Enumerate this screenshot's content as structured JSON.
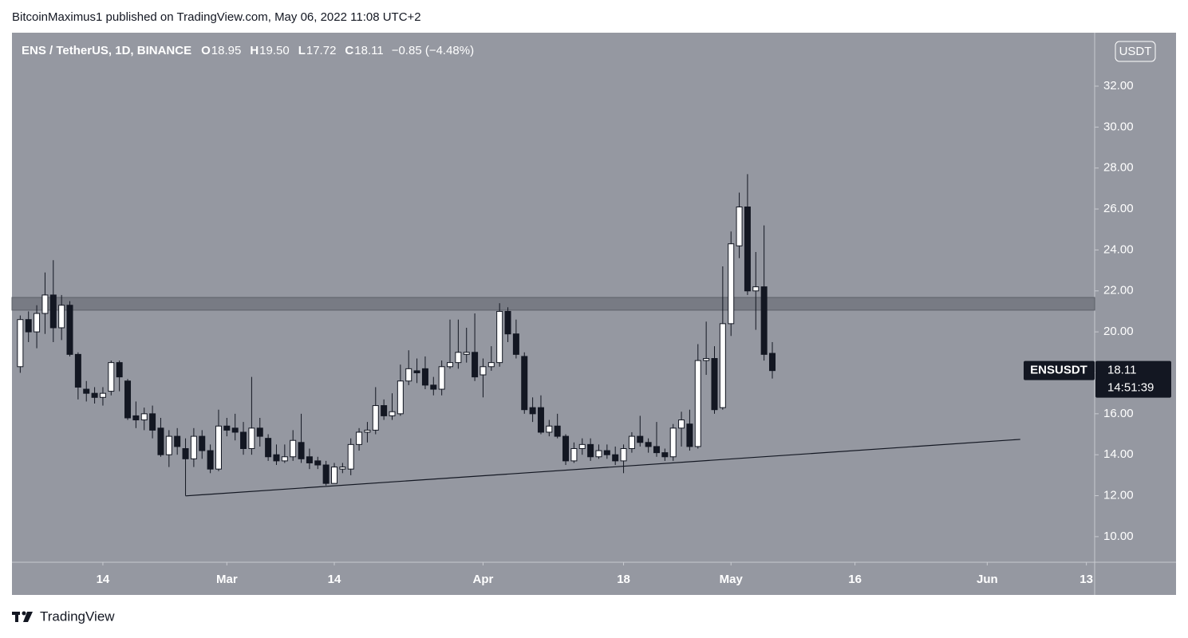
{
  "header": "BitcoinMaximus1 published on TradingView.com, May 06, 2022 11:08 UTC+2",
  "footer": {
    "brand": "TradingView"
  },
  "chart_data": {
    "type": "candlestick",
    "title": "ENS / TetherUS, 1D, BINANCE",
    "legend": [
      {
        "label": "O",
        "value": "18.95"
      },
      {
        "label": "H",
        "value": "19.50"
      },
      {
        "label": "L",
        "value": "17.72"
      },
      {
        "label": "C",
        "value": "18.11"
      }
    ],
    "change": "−0.85 (−4.48%)",
    "currency": "USDT",
    "last_tag": {
      "symbol": "ENSUSDT",
      "price": "18.11",
      "countdown": "14:51:39"
    },
    "up_color": "#ffffff",
    "down_color": "#131722",
    "x": [
      "Feb 04",
      "Feb 05",
      "Feb 06",
      "Feb 07",
      "Feb 08",
      "Feb 09",
      "Feb 10",
      "Feb 11",
      "Feb 12",
      "Feb 13",
      "Feb 14",
      "Feb 15",
      "Feb 16",
      "Feb 17",
      "Feb 18",
      "Feb 19",
      "Feb 20",
      "Feb 21",
      "Feb 22",
      "Feb 23",
      "Feb 24",
      "Feb 25",
      "Feb 26",
      "Feb 27",
      "Feb 28",
      "Mar 01",
      "Mar 02",
      "Mar 03",
      "Mar 04",
      "Mar 05",
      "Mar 06",
      "Mar 07",
      "Mar 08",
      "Mar 09",
      "Mar 10",
      "Mar 11",
      "Mar 12",
      "Mar 13",
      "Mar 14",
      "Mar 15",
      "Mar 16",
      "Mar 17",
      "Mar 18",
      "Mar 19",
      "Mar 20",
      "Mar 21",
      "Mar 22",
      "Mar 23",
      "Mar 24",
      "Mar 25",
      "Mar 26",
      "Mar 27",
      "Mar 28",
      "Mar 29",
      "Mar 30",
      "Mar 31",
      "Apr 01",
      "Apr 02",
      "Apr 03",
      "Apr 04",
      "Apr 05",
      "Apr 06",
      "Apr 07",
      "Apr 08",
      "Apr 09",
      "Apr 10",
      "Apr 11",
      "Apr 12",
      "Apr 13",
      "Apr 14",
      "Apr 15",
      "Apr 16",
      "Apr 17",
      "Apr 18",
      "Apr 19",
      "Apr 20",
      "Apr 21",
      "Apr 22",
      "Apr 23",
      "Apr 24",
      "Apr 25",
      "Apr 26",
      "Apr 27",
      "Apr 28",
      "Apr 29",
      "Apr 30",
      "May 01",
      "May 02",
      "May 03",
      "May 04",
      "May 05",
      "May 06"
    ],
    "open": [
      18.3,
      20.6,
      20.0,
      20.9,
      21.8,
      20.2,
      21.3,
      18.9,
      17.2,
      17.0,
      16.8,
      17.1,
      18.5,
      17.6,
      15.9,
      15.7,
      16.0,
      15.3,
      14.0,
      14.9,
      14.3,
      13.8,
      14.9,
      14.2,
      13.3,
      15.4,
      15.3,
      15.1,
      14.3,
      15.3,
      14.8,
      14.0,
      13.7,
      13.9,
      14.6,
      13.9,
      13.7,
      13.5,
      12.6,
      13.3,
      13.3,
      14.5,
      15.1,
      15.2,
      16.4,
      15.9,
      16.0,
      17.6,
      18.1,
      18.2,
      17.4,
      17.2,
      18.3,
      18.5,
      18.9,
      19.0,
      17.9,
      18.3,
      18.5,
      21.0,
      19.9,
      18.8,
      16.3,
      16.3,
      15.1,
      15.4,
      14.9,
      13.7,
      14.3,
      14.5,
      13.9,
      14.2,
      14.0,
      13.7,
      14.3,
      14.9,
      14.6,
      14.4,
      14.1,
      13.9,
      15.3,
      15.5,
      14.4,
      18.6,
      18.7,
      16.3,
      20.4,
      24.2,
      26.1,
      22.0,
      22.2,
      18.95
    ],
    "high": [
      20.8,
      21.0,
      21.3,
      22.9,
      23.5,
      21.8,
      21.5,
      19.0,
      17.6,
      17.3,
      17.3,
      18.6,
      18.6,
      17.7,
      16.6,
      16.3,
      16.4,
      15.8,
      15.2,
      15.3,
      14.8,
      15.3,
      15.2,
      14.5,
      16.2,
      15.8,
      16.0,
      15.6,
      17.8,
      15.8,
      15.0,
      14.5,
      14.5,
      15.2,
      16.0,
      14.3,
      13.9,
      13.7,
      13.6,
      13.6,
      14.8,
      15.3,
      15.6,
      17.3,
      16.7,
      17.0,
      18.4,
      19.1,
      18.7,
      18.8,
      17.8,
      18.6,
      20.6,
      20.6,
      20.2,
      20.9,
      18.7,
      19.3,
      21.4,
      21.2,
      20.6,
      19.0,
      16.8,
      16.9,
      15.7,
      16.0,
      15.0,
      14.6,
      14.8,
      14.8,
      14.5,
      14.5,
      14.4,
      14.5,
      15.1,
      15.9,
      14.8,
      15.6,
      14.3,
      15.5,
      16.1,
      16.2,
      19.4,
      20.5,
      19.3,
      23.2,
      24.9,
      26.8,
      27.7,
      23.9,
      25.2,
      19.5
    ],
    "low": [
      18.0,
      19.5,
      19.2,
      19.9,
      19.5,
      19.6,
      18.8,
      16.7,
      16.6,
      16.5,
      16.4,
      16.9,
      17.1,
      15.7,
      15.3,
      15.2,
      14.8,
      13.9,
      13.4,
      14.0,
      12.0,
      13.4,
      13.8,
      13.1,
      13.2,
      14.9,
      14.7,
      14.0,
      14.0,
      14.4,
      13.7,
      13.5,
      13.6,
      13.7,
      13.6,
      13.3,
      13.3,
      12.5,
      12.6,
      13.1,
      13.0,
      14.2,
      14.6,
      15.0,
      15.7,
      15.7,
      15.9,
      17.4,
      17.5,
      17.2,
      16.9,
      16.9,
      18.2,
      18.2,
      18.5,
      17.6,
      16.8,
      18.1,
      18.3,
      19.5,
      18.7,
      16.0,
      15.6,
      15.0,
      14.9,
      14.8,
      13.5,
      13.6,
      14.0,
      13.7,
      13.8,
      13.8,
      13.5,
      13.1,
      14.1,
      14.4,
      14.1,
      13.9,
      13.7,
      13.7,
      14.4,
      14.2,
      14.3,
      17.9,
      16.0,
      16.2,
      19.8,
      23.6,
      21.8,
      20.1,
      18.6,
      17.72
    ],
    "close": [
      20.6,
      20.0,
      20.9,
      21.8,
      20.2,
      21.3,
      18.9,
      17.3,
      17.0,
      16.8,
      17.0,
      18.5,
      17.8,
      15.8,
      15.7,
      16.0,
      15.2,
      14.0,
      14.9,
      14.4,
      13.8,
      14.9,
      14.2,
      13.3,
      15.4,
      15.2,
      15.1,
      14.3,
      15.3,
      14.9,
      13.9,
      13.7,
      13.9,
      14.7,
      13.8,
      13.6,
      13.5,
      12.6,
      13.4,
      13.4,
      14.5,
      15.1,
      15.2,
      16.4,
      15.9,
      16.1,
      17.6,
      18.2,
      18.0,
      17.4,
      17.2,
      18.3,
      18.5,
      19.0,
      19.0,
      17.8,
      18.3,
      18.5,
      21.0,
      19.9,
      18.9,
      16.2,
      16.0,
      15.1,
      15.4,
      14.9,
      13.7,
      14.3,
      14.5,
      13.9,
      14.2,
      14.0,
      13.7,
      14.3,
      14.9,
      14.6,
      14.4,
      14.1,
      13.9,
      15.3,
      15.7,
      14.4,
      18.6,
      18.7,
      16.2,
      20.4,
      24.3,
      26.1,
      22.0,
      22.2,
      18.9,
      18.11
    ],
    "xlim": [
      "Feb 03",
      "Jun 14"
    ],
    "xticks": [
      {
        "value": "Feb 14",
        "label": "14"
      },
      {
        "value": "Mar 01",
        "label": "Mar"
      },
      {
        "value": "Mar 14",
        "label": "14"
      },
      {
        "value": "Apr 01",
        "label": "Apr"
      },
      {
        "value": "Apr 18",
        "label": "18"
      },
      {
        "value": "May 01",
        "label": "May"
      },
      {
        "value": "May 16",
        "label": "16"
      },
      {
        "value": "Jun 01",
        "label": "Jun"
      },
      {
        "value": "Jun 13",
        "label": "13"
      }
    ],
    "ylim": [
      8.75,
      34.57
    ],
    "yticks": [
      {
        "value": 10,
        "label": "10.00"
      },
      {
        "value": 12,
        "label": "12.00"
      },
      {
        "value": 14,
        "label": "14.00"
      },
      {
        "value": 16,
        "label": "16.00"
      },
      {
        "value": 18,
        "label": "18.00"
      },
      {
        "value": 20,
        "label": "20.00"
      },
      {
        "value": 22,
        "label": "22.00"
      },
      {
        "value": 24,
        "label": "24.00"
      },
      {
        "value": 26,
        "label": "26.00"
      },
      {
        "value": 28,
        "label": "28.00"
      },
      {
        "value": 30,
        "label": "30.00"
      },
      {
        "value": 32,
        "label": "32.00"
      }
    ],
    "zone": {
      "y": [
        21.06,
        21.68
      ]
    },
    "trendline": {
      "x": [
        "Feb 24",
        "Jun 05"
      ],
      "y": [
        11.99,
        14.75
      ]
    }
  }
}
